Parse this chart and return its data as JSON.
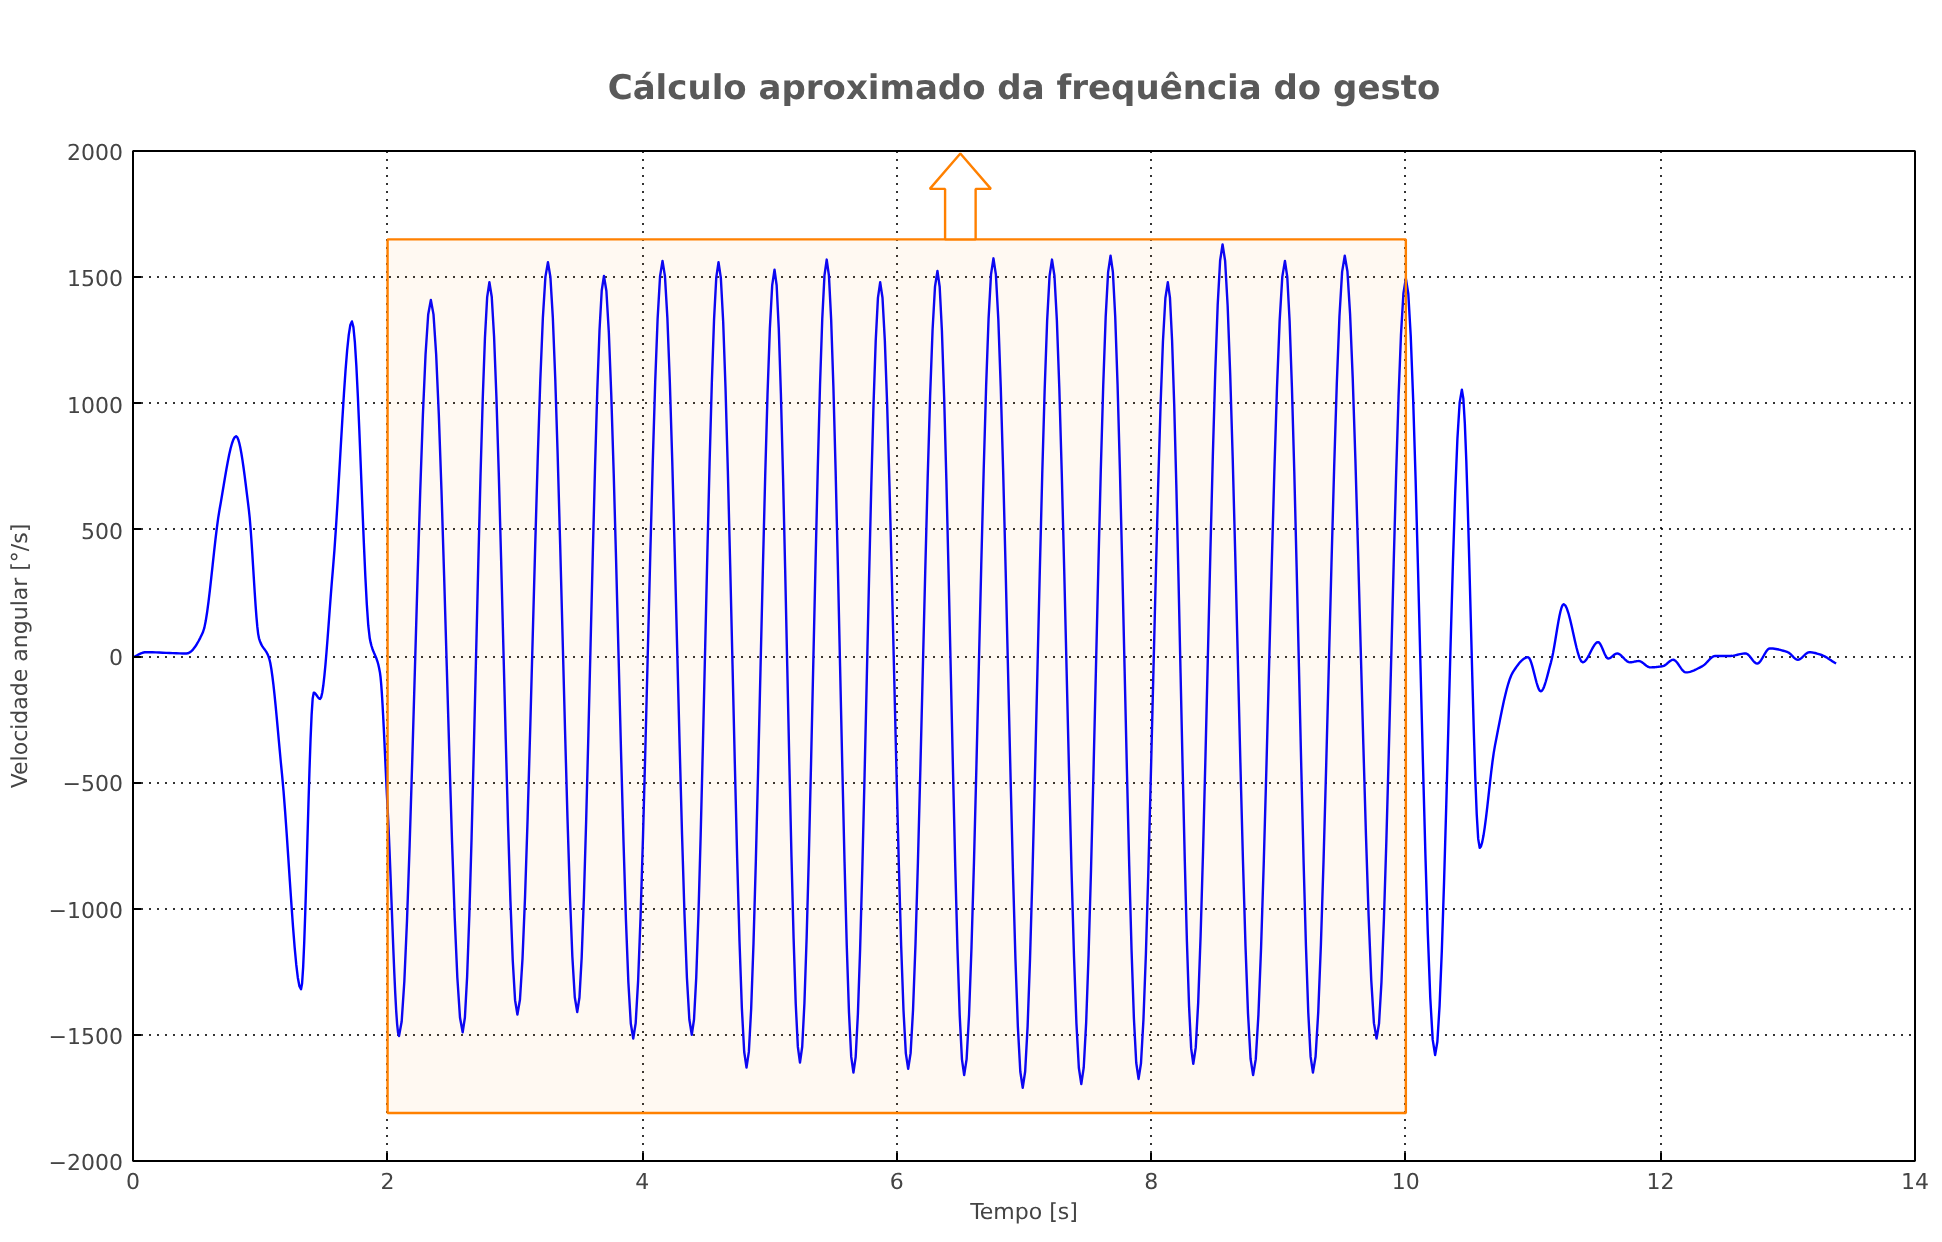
{
  "chart_data": {
    "type": "line",
    "title": "Cálculo aproximado da frequência do gesto",
    "xlabel": "Tempo [s]",
    "ylabel": "Velocidade angular [°/s]",
    "x": [
      0,
      0.1,
      0.42,
      0.55,
      0.68,
      0.81,
      0.91,
      0.99,
      1.07,
      1.17,
      1.32,
      1.42,
      1.47,
      1.57,
      1.72,
      1.86,
      1.94,
      2.0,
      2.09,
      2.34,
      2.59,
      2.8,
      3.02,
      3.26,
      3.49,
      3.7,
      3.93,
      4.16,
      4.39,
      4.6,
      4.82,
      5.04,
      5.24,
      5.45,
      5.66,
      5.87,
      6.09,
      6.32,
      6.53,
      6.76,
      6.99,
      7.22,
      7.45,
      7.68,
      7.9,
      8.13,
      8.33,
      8.56,
      8.8,
      9.05,
      9.27,
      9.52,
      9.77,
      10.0,
      10.23,
      10.44,
      10.58,
      10.7,
      10.84,
      10.96,
      11.06,
      11.14,
      11.24,
      11.39,
      11.51,
      11.59,
      11.66,
      11.76,
      11.83,
      11.92,
      12.02,
      12.1,
      12.2,
      12.33,
      12.43,
      12.54,
      12.67,
      12.76,
      12.86,
      13.0,
      13.08,
      13.17,
      13.26,
      13.38
    ],
    "series": [
      {
        "color": "#0000ff",
        "values": [
          -5,
          15,
          10,
          95,
          580,
          870,
          580,
          70,
          -10,
          -465,
          -1320,
          -145,
          -170,
          340,
          1325,
          70,
          -65,
          -600,
          -1505,
          1410,
          -1490,
          1480,
          -1420,
          1560,
          -1410,
          1505,
          -1515,
          1565,
          -1500,
          1560,
          -1630,
          1530,
          -1610,
          1570,
          -1650,
          1480,
          -1635,
          1525,
          -1660,
          1575,
          -1710,
          1570,
          -1695,
          1585,
          -1675,
          1480,
          -1615,
          1630,
          -1660,
          1565,
          -1650,
          1585,
          -1515,
          1495,
          -1580,
          1055,
          -760,
          -355,
          -65,
          -5,
          -140,
          -25,
          205,
          -25,
          55,
          -10,
          10,
          -25,
          -20,
          -45,
          -40,
          -15,
          -65,
          -40,
          0,
          0,
          10,
          -30,
          30,
          15,
          -15,
          15,
          5,
          -30
        ]
      }
    ],
    "xlim": [
      0,
      14
    ],
    "ylim": [
      -2000,
      2000
    ],
    "xticks": [
      0,
      2,
      4,
      6,
      8,
      10,
      12,
      14
    ],
    "yticks": [
      -2000,
      -1500,
      -1000,
      -500,
      0,
      500,
      1000,
      1500,
      2000
    ],
    "bands": [
      {
        "axis": "x",
        "from": 2,
        "to": 10,
        "color": "#ff8000"
      }
    ],
    "grid": true,
    "marker": "none",
    "line_style": "solid"
  }
}
